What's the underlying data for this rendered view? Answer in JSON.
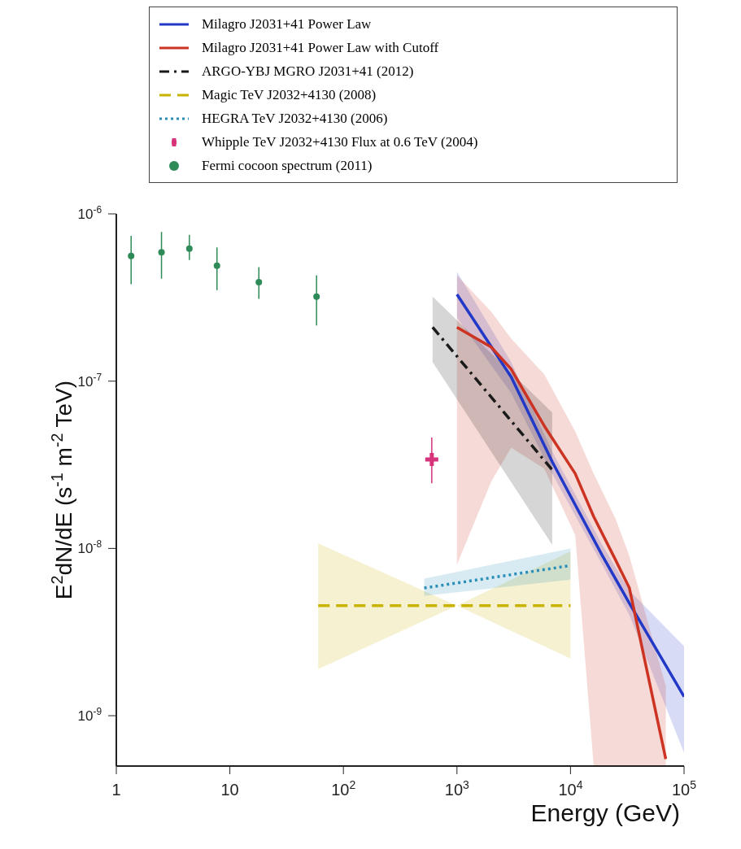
{
  "chart_data": {
    "type": "line",
    "xlabel": "Energy (GeV)",
    "ylabel": "E$^{2}$dN/dE (s$^{-1}$ m$^{-2}$ TeV)",
    "log": "xy",
    "xlim": [
      1,
      100000
    ],
    "ylim": [
      5e-10,
      1e-06
    ],
    "xticks": [
      1,
      10,
      {
        "value": 100,
        "label": "10$^{2}$"
      },
      {
        "value": 1000,
        "label": "10$^{3}$"
      },
      {
        "value": 10000,
        "label": "10$^{4}$"
      },
      {
        "value": 100000,
        "label": "10$^{5}$"
      }
    ],
    "yticks": [
      {
        "value": 1e-09,
        "label": "10$^{-9}$"
      },
      {
        "value": 1e-08,
        "label": "10$^{-8}$"
      },
      {
        "value": 1e-07,
        "label": "10$^{-7}$"
      },
      {
        "value": 1e-06,
        "label": "10$^{-6}$"
      }
    ],
    "grid": false,
    "legend": "top",
    "series": [
      {
        "name": "Milagro J2031+41 Power Law",
        "color": "#2239c8",
        "line_style": "solid",
        "x": [
          1000,
          3000,
          6900,
          19000,
          33000,
          100000
        ],
        "values": [
          3.3e-07,
          1.06e-07,
          3.3e-08,
          9.1e-09,
          4.7e-09,
          1.3e-09
        ],
        "lower": [
          2.4e-07,
          8.5e-08,
          2.8e-08,
          8e-09,
          4e-09,
          6e-10
        ],
        "upper": [
          4.5e-07,
          1.3e-07,
          3.8e-08,
          1.05e-08,
          5.6e-09,
          2.6e-09
        ]
      },
      {
        "name": "Milagro J2031+41 Power Law with Cutoff",
        "color": "#cc3322",
        "line_style": "solid",
        "x": [
          1000,
          2000,
          3000,
          5870,
          11000,
          16000,
          25000,
          33000,
          69000
        ],
        "values": [
          2.1e-07,
          1.6e-07,
          1.18e-07,
          5.4e-08,
          2.8e-08,
          1.55e-08,
          8.5e-09,
          5.8e-09,
          5.5e-10
        ],
        "lower": [
          8e-09,
          2.5e-08,
          4e-08,
          3e-08,
          1.2e-08,
          5e-10,
          5e-10,
          5e-10,
          5e-10
        ],
        "upper": [
          4.3e-07,
          2.6e-07,
          1.8e-07,
          1.1e-07,
          5e-08,
          2.8e-08,
          1.5e-08,
          9e-09,
          1.5e-09
        ]
      },
      {
        "name": "ARGO-YBJ MGRO J2031+41 (2012)",
        "color": "#1a1a1a",
        "line_style": "dashdot",
        "x": [
          610,
          6900
        ],
        "values": [
          2.1e-07,
          2.95e-08
        ],
        "lower": [
          1.3e-07,
          1.05e-08
        ],
        "upper": [
          3.2e-07,
          6.5e-08
        ]
      },
      {
        "name": "Magic TeV J2032+4130 (2008)",
        "color": "#c8b400",
        "line_style": "dashed",
        "x": [
          60,
          1000,
          10000
        ],
        "values": [
          4.55e-09,
          4.55e-09,
          4.55e-09
        ],
        "lower": [
          1.9e-09,
          4.55e-09,
          2.2e-09
        ],
        "upper": [
          1.07e-08,
          4.55e-09,
          9.6e-09
        ]
      },
      {
        "name": "HEGRA TeV J2032+4130 (2006)",
        "color": "#2a8fb8",
        "line_style": "dotted",
        "x": [
          515,
          10000
        ],
        "values": [
          5.8e-09,
          7.9e-09
        ],
        "lower": [
          5.2e-09,
          6.5e-09
        ],
        "upper": [
          6.6e-09,
          1e-08
        ]
      },
      {
        "name": "Whipple TeV J2032+4130 Flux at 0.6 TeV (2004)",
        "type": "scatter",
        "marker": "cross",
        "color": "#d6337a",
        "x": [
          600
        ],
        "values": [
          3.4e-08
        ],
        "errors": [
          [
            2.45e-08,
            4.6e-08
          ]
        ]
      },
      {
        "name": "Fermi cocoon spectrum (2011)",
        "type": "scatter",
        "marker": "circle",
        "color": "#2e8b57",
        "x": [
          1.35,
          2.5,
          4.4,
          7.7,
          18,
          58
        ],
        "values": [
          5.6e-07,
          5.9e-07,
          6.2e-07,
          4.9e-07,
          3.9e-07,
          3.2e-07
        ],
        "errors": [
          [
            3.8e-07,
            7.4e-07
          ],
          [
            4.1e-07,
            7.8e-07
          ],
          [
            5.3e-07,
            7.5e-07
          ],
          [
            3.5e-07,
            6.3e-07
          ],
          [
            3.1e-07,
            4.8e-07
          ],
          [
            2.15e-07,
            4.3e-07
          ]
        ]
      }
    ]
  }
}
